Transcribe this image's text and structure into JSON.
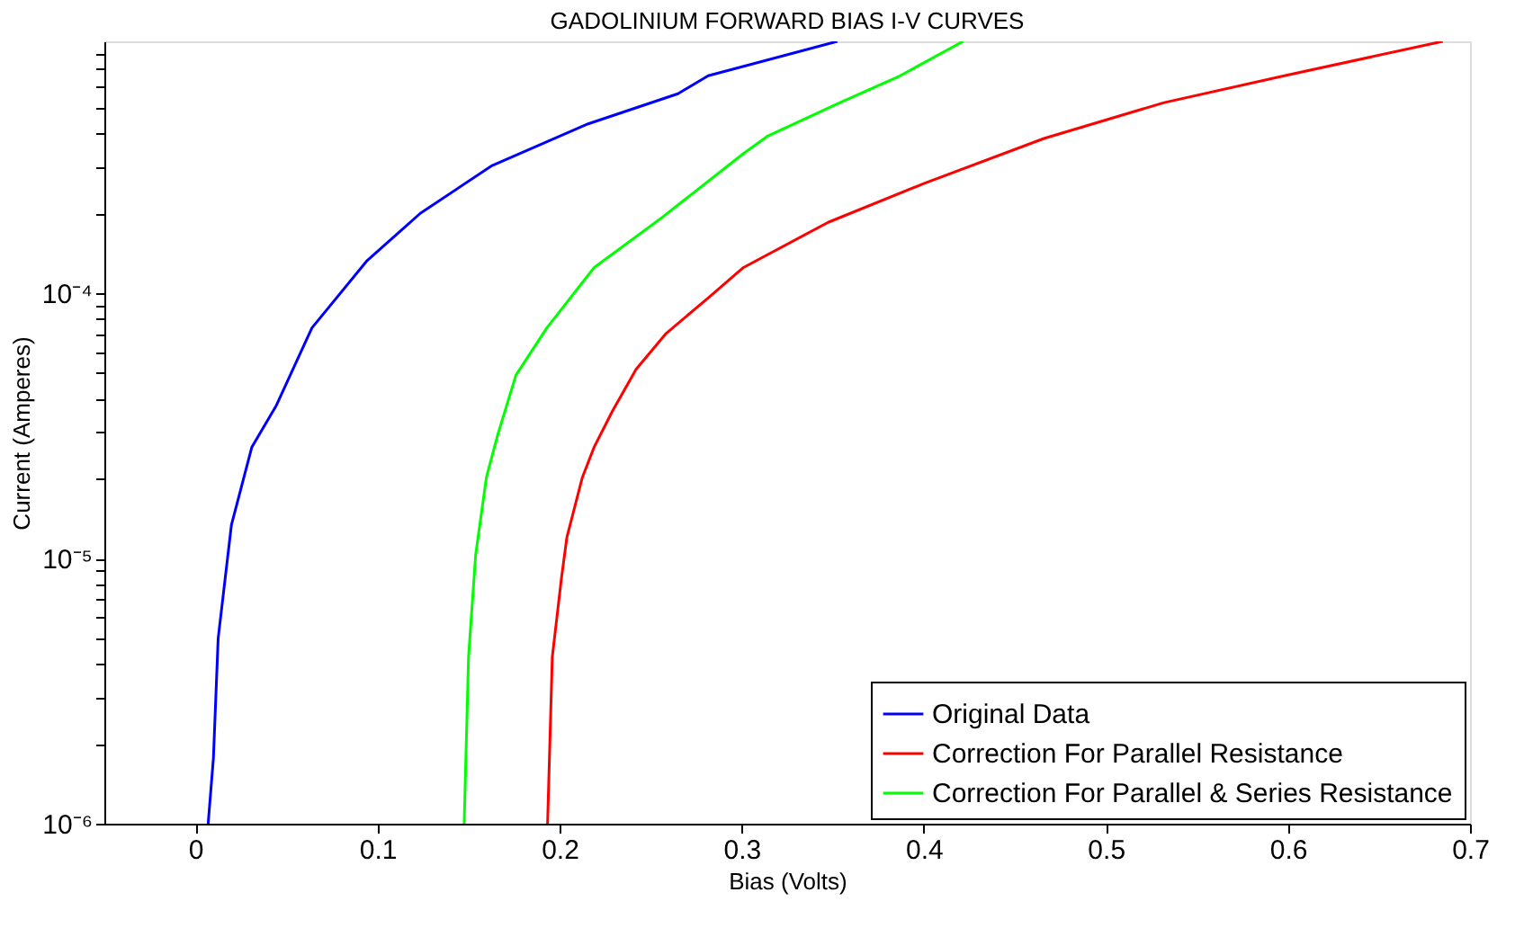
{
  "chart_data": {
    "type": "line",
    "title": "GADOLINIUM FORWARD BIAS I-V CURVES",
    "xlabel": "Bias (Volts)",
    "ylabel": "Current (Amperes)",
    "log": "y",
    "grid": false,
    "legend": "bottom right",
    "marker": "none",
    "line_style": "solid",
    "xlim": [
      -0.05,
      0.7
    ],
    "xticks": [
      0,
      0.1,
      0.2,
      0.3,
      0.4,
      0.5,
      0.6,
      0.7
    ],
    "ylim": [
      1e-06,
      0.00089
    ],
    "yticks": [
      {
        "value": 1e-06,
        "label": "10⁻⁶"
      },
      {
        "value": 2e-06,
        "label": null
      },
      {
        "value": 3e-06,
        "label": null
      },
      {
        "value": 4e-06,
        "label": null
      },
      {
        "value": 5e-06,
        "label": null
      },
      {
        "value": 6e-06,
        "label": null
      },
      {
        "value": 7e-06,
        "label": null
      },
      {
        "value": 8e-06,
        "label": null
      },
      {
        "value": 9e-06,
        "label": null
      },
      {
        "value": 1e-05,
        "label": "10⁻⁵"
      },
      {
        "value": 2e-05,
        "label": null
      },
      {
        "value": 3e-05,
        "label": null
      },
      {
        "value": 4e-05,
        "label": null
      },
      {
        "value": 5e-05,
        "label": null
      },
      {
        "value": 6e-05,
        "label": null
      },
      {
        "value": 7e-05,
        "label": null
      },
      {
        "value": 8e-05,
        "label": null
      },
      {
        "value": 9e-05,
        "label": null
      },
      {
        "value": 0.0001,
        "label": "10⁻⁴"
      },
      {
        "value": 0.0002,
        "label": null
      },
      {
        "value": 0.0003,
        "label": null
      },
      {
        "value": 0.0004,
        "label": null
      },
      {
        "value": 0.0005,
        "label": null
      },
      {
        "value": 0.0006,
        "label": null
      },
      {
        "value": 0.0007,
        "label": null
      },
      {
        "value": 0.0008,
        "label": null
      }
    ],
    "series": [
      {
        "name": "Original Data",
        "color": "#0000ff",
        "x": [
          0.007,
          0.0099,
          0.0125,
          0.0198,
          0.031,
          0.0445,
          0.064,
          0.094,
          0.1235,
          0.163,
          0.2157,
          0.265,
          0.2816,
          0.3525
        ],
        "values": [
          1e-06,
          1.77e-06,
          5e-06,
          1.34e-05,
          2.63e-05,
          3.78e-05,
          7.4e-05,
          0.000132,
          0.0002,
          0.000303,
          0.000435,
          0.000565,
          0.00066,
          0.00089
        ]
      },
      {
        "name": "Correction For Parallel Resistance",
        "color": "#ff0000",
        "x": [
          0.1934,
          0.196,
          0.201,
          0.204,
          0.2125,
          0.219,
          0.229,
          0.242,
          0.2585,
          0.2816,
          0.301,
          0.3475,
          0.4,
          0.466,
          0.532,
          0.598,
          0.685
        ],
        "values": [
          1e-06,
          4.25e-06,
          8.4e-06,
          1.2e-05,
          2.02e-05,
          2.63e-05,
          3.59e-05,
          5.16e-05,
          7.05e-05,
          9.6e-05,
          0.000125,
          0.000185,
          0.000259,
          0.000383,
          0.000523,
          0.00066,
          0.00089
        ]
      },
      {
        "name": "Correction For Parallel & Series Resistance",
        "color": "#00ff00",
        "x": [
          0.1476,
          0.15,
          0.1539,
          0.1598,
          0.166,
          0.176,
          0.193,
          0.219,
          0.255,
          0.301,
          0.3145,
          0.354,
          0.387,
          0.4216
        ],
        "values": [
          1e-06,
          4.25e-06,
          1.03e-05,
          2.02e-05,
          2.92e-05,
          4.9e-05,
          7.4e-05,
          0.000125,
          0.00019,
          0.000336,
          0.000392,
          0.000523,
          0.00066,
          0.00089
        ]
      }
    ]
  }
}
